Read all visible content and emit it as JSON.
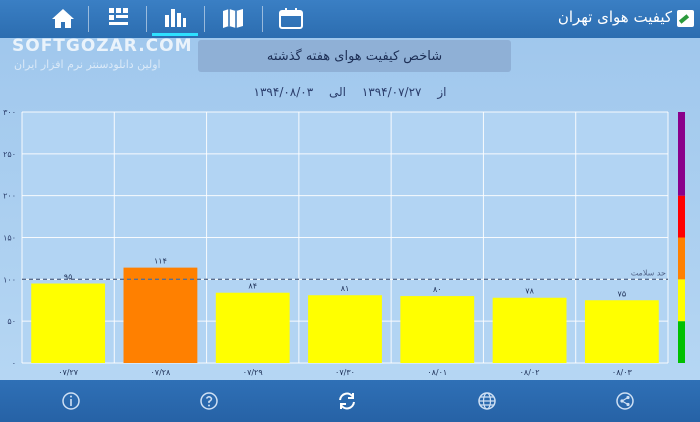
{
  "app": {
    "title": "کیفیت هوای تهران"
  },
  "watermark": {
    "brand": "SOFTGOZAR.COM",
    "tagline": "اولین دانلودسنتر نرم افزار ایران"
  },
  "tabs": [
    {
      "icon": "home-icon"
    },
    {
      "icon": "ranking-icon"
    },
    {
      "icon": "bar-chart-icon",
      "active": true
    },
    {
      "icon": "map-icon"
    },
    {
      "icon": "calendar-icon"
    }
  ],
  "bottom_icons": [
    "info-icon",
    "help-icon",
    "refresh-icon",
    "globe-icon",
    "share-icon"
  ],
  "chart_data": {
    "type": "bar",
    "title": "شاخص کیفیت هوای هفته گذشته",
    "subtitle": {
      "from_label": "از",
      "from_date": "۱۳۹۴/۰۷/۲۷",
      "to_label": "الی",
      "to_date": "۱۳۹۴/۰۸/۰۳"
    },
    "categories": [
      "۰۷/۲۷",
      "۰۷/۲۸",
      "۰۷/۲۹",
      "۰۷/۳۰",
      "۰۸/۰۱",
      "۰۸/۰۲",
      "۰۸/۰۳"
    ],
    "values": [
      95,
      114,
      84,
      81,
      80,
      78,
      75
    ],
    "value_labels": [
      "۹۵",
      "۱۱۴",
      "۸۴",
      "۸۱",
      "۸۰",
      "۷۸",
      "۷۵"
    ],
    "bar_colors": [
      "#ffff00",
      "#ff8000",
      "#ffff00",
      "#ffff00",
      "#ffff00",
      "#ffff00",
      "#ffff00"
    ],
    "ylim": [
      0,
      300
    ],
    "yticks": [
      0,
      50,
      100,
      150,
      200,
      250,
      300
    ],
    "ytick_labels": [
      "۰",
      "۵۰",
      "۱۰۰",
      "۱۵۰",
      "۲۰۰",
      "۲۵۰",
      "۳۰۰"
    ],
    "grid": true,
    "threshold": {
      "value": 100,
      "label": "حد سلامت"
    },
    "scale_bands": [
      {
        "from": 0,
        "to": 50,
        "color": "#00c000"
      },
      {
        "from": 50,
        "to": 100,
        "color": "#ffff00"
      },
      {
        "from": 100,
        "to": 150,
        "color": "#ff8000"
      },
      {
        "from": 150,
        "to": 200,
        "color": "#ff0000"
      },
      {
        "from": 200,
        "to": 300,
        "color": "#8a008a"
      }
    ]
  }
}
